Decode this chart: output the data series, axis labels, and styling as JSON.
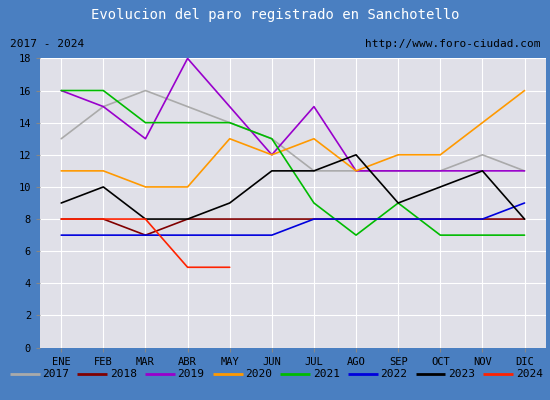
{
  "title": "Evolucion del paro registrado en Sanchotello",
  "subtitle_left": "2017 - 2024",
  "subtitle_right": "http://www.foro-ciudad.com",
  "title_bg": "#4a7fc1",
  "title_color": "white",
  "xlabel_months": [
    "ENE",
    "FEB",
    "MAR",
    "ABR",
    "MAY",
    "JUN",
    "JUL",
    "AGO",
    "SEP",
    "OCT",
    "NOV",
    "DIC"
  ],
  "ylim": [
    0,
    18
  ],
  "yticks": [
    0,
    2,
    4,
    6,
    8,
    10,
    12,
    14,
    16,
    18
  ],
  "series": {
    "2017": {
      "color": "#aaaaaa",
      "data": [
        13,
        15,
        16,
        15,
        14,
        13,
        11,
        11,
        11,
        11,
        12,
        11
      ]
    },
    "2018": {
      "color": "#800000",
      "data": [
        8,
        8,
        7,
        8,
        8,
        8,
        8,
        8,
        8,
        8,
        8,
        8
      ]
    },
    "2019": {
      "color": "#9900cc",
      "data": [
        16,
        15,
        13,
        18,
        15,
        12,
        15,
        11,
        11,
        11,
        11,
        11
      ]
    },
    "2020": {
      "color": "#ff9900",
      "data": [
        11,
        11,
        10,
        10,
        13,
        12,
        13,
        11,
        12,
        12,
        14,
        16
      ]
    },
    "2021": {
      "color": "#00bb00",
      "data": [
        16,
        16,
        14,
        14,
        14,
        13,
        9,
        7,
        9,
        7,
        7,
        7
      ]
    },
    "2022": {
      "color": "#0000dd",
      "data": [
        7,
        7,
        7,
        7,
        7,
        7,
        8,
        8,
        8,
        8,
        8,
        9
      ]
    },
    "2023": {
      "color": "#000000",
      "data": [
        9,
        10,
        8,
        8,
        9,
        11,
        11,
        12,
        9,
        10,
        11,
        8
      ]
    },
    "2024": {
      "color": "#ff2200",
      "data": [
        8,
        8,
        8,
        5,
        5,
        null,
        null,
        null,
        null,
        null,
        null,
        null
      ]
    }
  },
  "legend_order": [
    "2017",
    "2018",
    "2019",
    "2020",
    "2021",
    "2022",
    "2023",
    "2024"
  ],
  "legend_colors": [
    "#aaaaaa",
    "#800000",
    "#9900cc",
    "#ff9900",
    "#00bb00",
    "#0000dd",
    "#000000",
    "#ff2200"
  ],
  "plot_bg": "#e0e0e8",
  "grid_color": "white",
  "border_color": "#4a7fc1",
  "legend_bg": "white"
}
